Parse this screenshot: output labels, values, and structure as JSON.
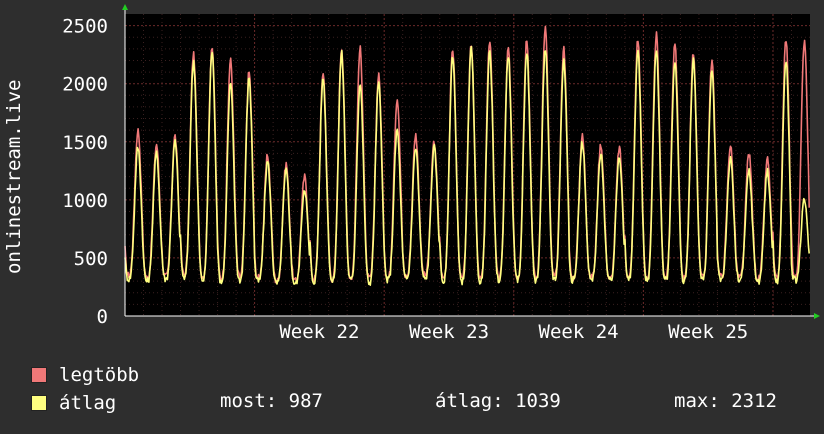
{
  "chart_data": {
    "type": "line",
    "ylabel": "onlinestream.live",
    "ylim": [
      0,
      2600
    ],
    "y_ticks": [
      "0",
      "500",
      "1000",
      "1500",
      "2000",
      "2500"
    ],
    "x_tick_labels": [
      "Week 22",
      "Week 23",
      "Week 24",
      "Week 25"
    ],
    "grid": true,
    "legend_position": "bottom-left",
    "days": 37,
    "series": [
      {
        "name": "legtöbb",
        "color": "#f07878",
        "daily_peak": [
          1600,
          1480,
          1550,
          2260,
          2330,
          2200,
          2100,
          1380,
          1310,
          1200,
          2100,
          2310,
          2300,
          2070,
          1870,
          1560,
          1500,
          2300,
          2350,
          2380,
          2300,
          2390,
          2480,
          2300,
          1550,
          1480,
          1450,
          2380,
          2420,
          2360,
          2260,
          2200,
          1470,
          1400,
          1350,
          2380,
          2380
        ],
        "daily_trough": [
          350,
          330,
          340,
          360,
          340,
          330,
          340,
          330,
          300,
          300,
          320,
          320,
          330,
          320,
          330,
          340,
          350,
          330,
          320,
          320,
          330,
          330,
          330,
          340,
          330,
          330,
          320,
          330,
          330,
          330,
          320,
          330,
          340,
          330,
          320,
          320,
          330
        ]
      },
      {
        "name": "átlag",
        "color": "#ffff80",
        "daily_peak": [
          1450,
          1400,
          1500,
          2200,
          2280,
          2000,
          2050,
          1330,
          1250,
          1100,
          2050,
          2260,
          2000,
          2000,
          1600,
          1450,
          1450,
          2250,
          2300,
          2270,
          2250,
          2280,
          2300,
          2200,
          1500,
          1400,
          1380,
          2280,
          2300,
          2200,
          2200,
          2100,
          1350,
          1250,
          1250,
          2200,
          1000
        ],
        "daily_trough": [
          320,
          300,
          320,
          330,
          310,
          300,
          310,
          300,
          280,
          280,
          300,
          300,
          310,
          290,
          310,
          320,
          320,
          300,
          300,
          300,
          310,
          310,
          310,
          320,
          310,
          310,
          300,
          310,
          310,
          310,
          300,
          310,
          320,
          310,
          300,
          300,
          310
        ]
      }
    ]
  },
  "legend": {
    "max_label": "legtöbb",
    "avg_label": "átlag",
    "max_color": "#f07878",
    "avg_color": "#ffff80"
  },
  "stats": {
    "current": "most: 987",
    "average": "átlag: 1039",
    "maximum": "max: 2312"
  }
}
